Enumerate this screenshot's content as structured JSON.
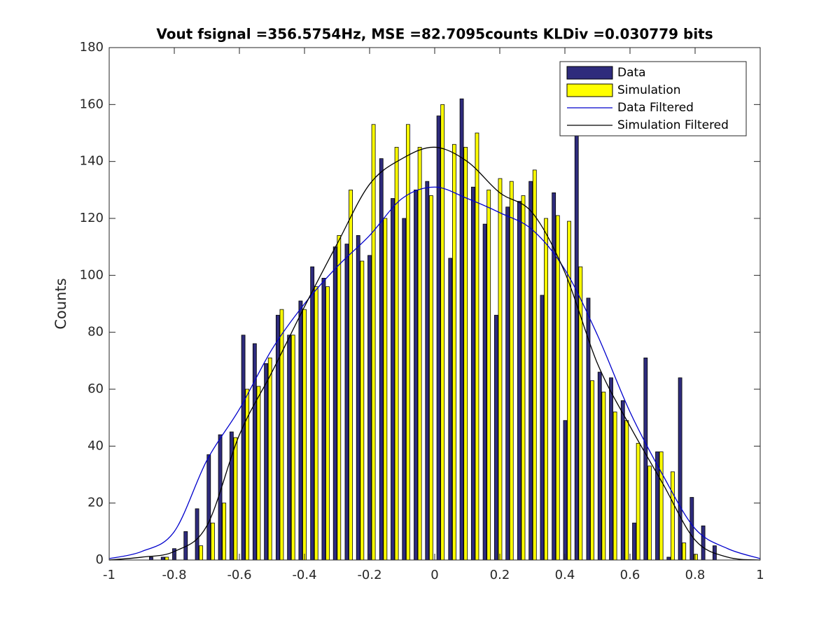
{
  "chart_data": {
    "type": "bar",
    "title": "Vout fsignal =356.5754Hz, MSE =82.7095counts KLDiv =0.030779 bits",
    "y_label": "Counts",
    "xlim": [
      -1,
      1
    ],
    "xticks": [
      -1,
      -0.8,
      -0.6,
      -0.4,
      -0.2,
      0,
      0.2,
      0.4,
      0.6,
      0.8,
      1
    ],
    "ylim": [
      0,
      180
    ],
    "yticks": [
      0,
      20,
      40,
      60,
      80,
      100,
      120,
      140,
      160,
      180
    ],
    "legend_position": "upper right",
    "x": [
      -0.865,
      -0.829,
      -0.794,
      -0.759,
      -0.724,
      -0.688,
      -0.653,
      -0.618,
      -0.582,
      -0.547,
      -0.512,
      -0.476,
      -0.441,
      -0.406,
      -0.37,
      -0.335,
      -0.3,
      -0.264,
      -0.229,
      -0.194,
      -0.158,
      -0.123,
      -0.088,
      -0.052,
      -0.017,
      0.018,
      0.054,
      0.089,
      0.124,
      0.16,
      0.195,
      0.23,
      0.266,
      0.301,
      0.336,
      0.372,
      0.407,
      0.442,
      0.478,
      0.513,
      0.548,
      0.584,
      0.619,
      0.654,
      0.69,
      0.725,
      0.76,
      0.796,
      0.831,
      0.866
    ],
    "series": [
      {
        "name": "Data",
        "color": "#2e2b7c",
        "values": [
          1,
          1,
          4,
          10,
          18,
          37,
          44,
          45,
          79,
          76,
          69,
          86,
          79,
          91,
          103,
          99,
          110,
          111,
          114,
          107,
          141,
          127,
          120,
          130,
          133,
          156,
          106,
          162,
          131,
          118,
          86,
          124,
          126,
          133,
          93,
          129,
          49,
          150,
          92,
          66,
          64,
          56,
          13,
          71,
          38,
          1,
          64,
          22,
          12,
          5
        ]
      },
      {
        "name": "Simulation",
        "color": "#ffff00",
        "values": [
          0,
          1,
          0,
          0,
          5,
          13,
          20,
          43,
          60,
          61,
          71,
          88,
          79,
          88,
          96,
          96,
          114,
          130,
          105,
          153,
          120,
          145,
          153,
          145,
          128,
          160,
          146,
          145,
          150,
          130,
          134,
          133,
          128,
          137,
          120,
          121,
          119,
          103,
          63,
          59,
          52,
          49,
          41,
          33,
          38,
          31,
          6,
          2,
          0,
          0
        ]
      }
    ],
    "lines": {
      "x": [
        -1,
        -0.9,
        -0.8,
        -0.7,
        -0.6,
        -0.5,
        -0.4,
        -0.3,
        -0.2,
        -0.1,
        0,
        0.1,
        0.2,
        0.3,
        0.4,
        0.5,
        0.6,
        0.7,
        0.8,
        0.9,
        1
      ],
      "series": [
        {
          "name": "Data Filtered",
          "color": "#0000cc",
          "values": [
            0.5,
            3,
            10,
            35,
            53,
            74,
            90,
            103,
            114,
            127,
            131,
            127,
            122,
            116,
            102,
            79,
            52,
            30,
            11,
            4,
            0.5
          ]
        },
        {
          "name": "Simulation Filtered",
          "color": "#000000",
          "values": [
            0,
            1,
            3,
            12,
            44,
            66,
            89,
            111,
            132,
            141,
            145,
            140,
            129,
            122,
            101,
            69,
            47,
            27,
            7,
            1,
            0
          ]
        }
      ]
    }
  }
}
